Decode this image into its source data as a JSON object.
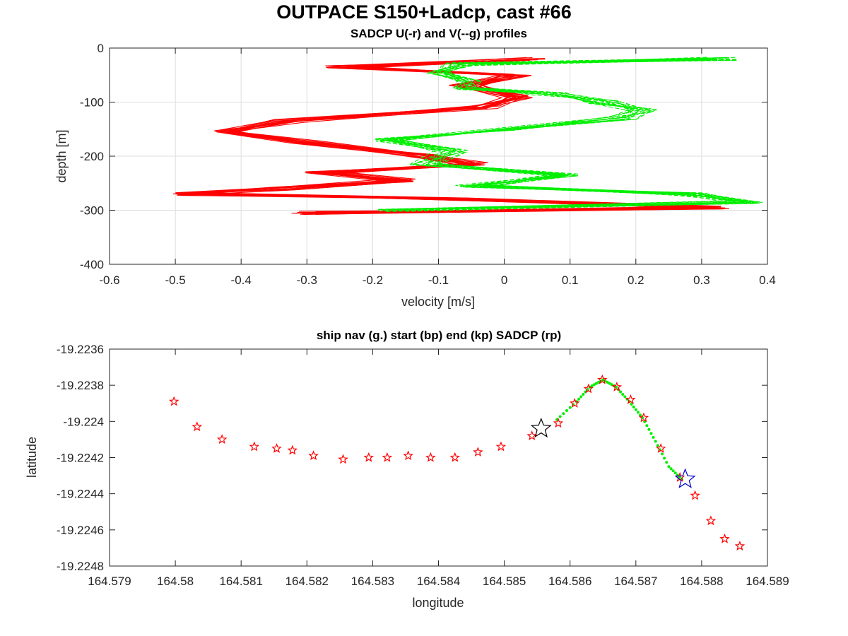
{
  "figure": {
    "title": "OUTPACE S150+Ladcp, cast #66"
  },
  "chart_data": [
    {
      "type": "line",
      "title": "SADCP U(-r) and V(--g) profiles",
      "xlabel": "velocity [m/s]",
      "ylabel": "depth [m]",
      "xlim": [
        -0.6,
        0.4
      ],
      "ylim": [
        -400,
        0
      ],
      "xticks": [
        -0.6,
        -0.5,
        -0.4,
        -0.3,
        -0.2,
        -0.1,
        0,
        0.1,
        0.2,
        0.3,
        0.4
      ],
      "xtick_labels": [
        "-0.6",
        "-0.5",
        "-0.4",
        "-0.3",
        "-0.2",
        "-0.1",
        "0",
        "0.1",
        "0.2",
        "0.3",
        "0.4"
      ],
      "yticks": [
        -400,
        -300,
        -200,
        -100,
        0
      ],
      "ytick_labels": [
        "-400",
        "-300",
        "-200",
        "-100",
        "0"
      ],
      "grid": true,
      "colors": {
        "U": "#ff0000",
        "V": "#00ee00"
      },
      "series": [
        {
          "line": "solid",
          "color": "#ff0000",
          "depth": [
            -20,
            -35,
            -50,
            -70,
            -90,
            -110,
            -135,
            -155,
            -175,
            -200,
            -215,
            -230,
            -245,
            -260,
            -270,
            -280,
            -295,
            -305
          ],
          "velocity": [
            0.04,
            -0.25,
            0.02,
            -0.06,
            0.02,
            -0.03,
            -0.33,
            -0.42,
            -0.3,
            -0.12,
            -0.05,
            -0.28,
            -0.16,
            -0.34,
            -0.48,
            -0.05,
            0.32,
            -0.3
          ]
        },
        {
          "line": "dashed",
          "color": "#00ee00",
          "depth": [
            -20,
            -30,
            -45,
            -60,
            -75,
            -85,
            -100,
            -115,
            -130,
            -150,
            -170,
            -190,
            -215,
            -235,
            -255,
            -270,
            -285,
            -300
          ],
          "velocity": [
            0.33,
            -0.07,
            -0.1,
            -0.05,
            -0.06,
            0.07,
            0.15,
            0.21,
            0.18,
            0.02,
            -0.18,
            -0.08,
            -0.12,
            0.09,
            -0.05,
            0.28,
            0.37,
            -0.17
          ]
        }
      ]
    },
    {
      "type": "scatter",
      "title": "ship nav (g.) start (bp) end (kp) SADCP (rp)",
      "xlabel": "longitude",
      "ylabel": "latitude",
      "xlim": [
        164.579,
        164.589
      ],
      "ylim": [
        -19.2248,
        -19.2236
      ],
      "xticks": [
        164.579,
        164.58,
        164.581,
        164.582,
        164.583,
        164.584,
        164.585,
        164.586,
        164.587,
        164.588,
        164.589
      ],
      "xtick_labels": [
        "164.579",
        "164.58",
        "164.581",
        "164.582",
        "164.583",
        "164.584",
        "164.585",
        "164.586",
        "164.587",
        "164.588",
        "164.589"
      ],
      "yticks": [
        -19.2248,
        -19.2246,
        -19.2244,
        -19.2242,
        -19.224,
        -19.2238,
        -19.2236
      ],
      "ytick_labels": [
        "-19.2248",
        "-19.2246",
        "-19.2244",
        "-19.2242",
        "-19.224",
        "-19.2238",
        "-19.2236"
      ],
      "grid": false,
      "colors": {
        "nav": "#00ee00",
        "start": "#0000cc",
        "end": "#000000",
        "sadcp": "#ff0000"
      },
      "ship_nav": {
        "lon": [
          164.5858,
          164.5861,
          164.5863,
          164.5865,
          164.5867,
          164.5869,
          164.5871,
          164.5873,
          164.5875,
          164.5877
        ],
        "lat": [
          -19.22399,
          -19.22389,
          -19.22381,
          -19.22377,
          -19.22381,
          -19.22389,
          -19.22398,
          -19.22411,
          -19.22425,
          -19.22432
        ]
      },
      "start": {
        "lon": 164.58775,
        "lat": -19.22432
      },
      "end": {
        "lon": 164.58556,
        "lat": -19.22404
      },
      "sadcp": {
        "lon": [
          164.57998,
          164.58033,
          164.58071,
          164.5812,
          164.58154,
          164.58178,
          164.5821,
          164.58255,
          164.58294,
          164.58322,
          164.58354,
          164.58388,
          164.58425,
          164.5846,
          164.58495,
          164.58542,
          164.58582,
          164.58607,
          164.58628,
          164.58649,
          164.58671,
          164.58692,
          164.58712,
          164.58738,
          164.58767,
          164.5879,
          164.58814,
          164.58835,
          164.58858
        ],
        "lat": [
          -19.22389,
          -19.22403,
          -19.2241,
          -19.22414,
          -19.22415,
          -19.22416,
          -19.22419,
          -19.22421,
          -19.2242,
          -19.2242,
          -19.22419,
          -19.2242,
          -19.2242,
          -19.22417,
          -19.22414,
          -19.22408,
          -19.22401,
          -19.2239,
          -19.22382,
          -19.22377,
          -19.22381,
          -19.22388,
          -19.22398,
          -19.22415,
          -19.22431,
          -19.22441,
          -19.22455,
          -19.22465,
          -19.22469
        ]
      }
    }
  ]
}
